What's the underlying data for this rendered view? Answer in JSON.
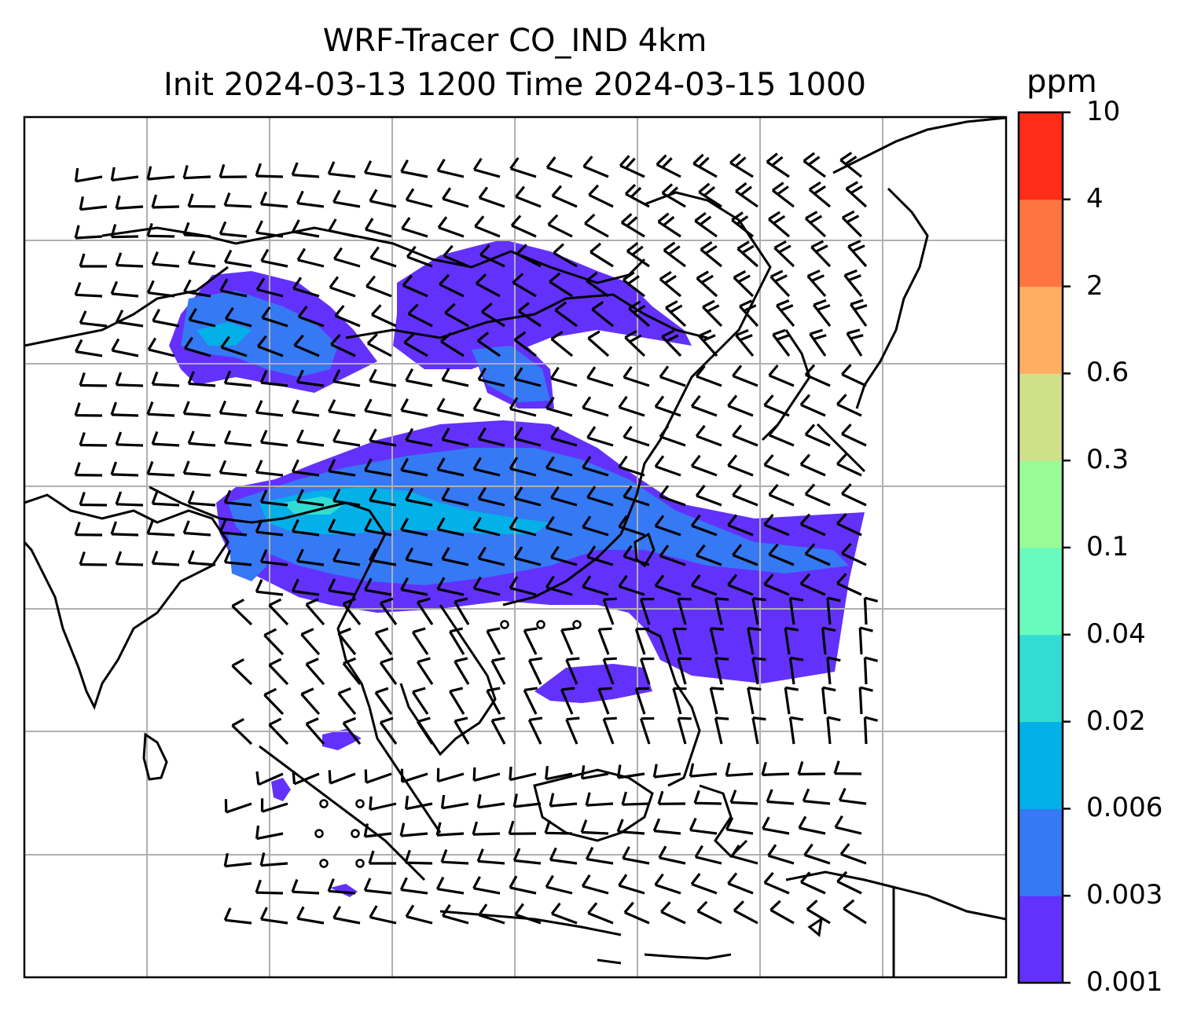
{
  "title": {
    "line1": "WRF-Tracer CO_IND 4km",
    "line2": "Init 2024-03-13 1200 Time 2024-03-15 1000"
  },
  "colorbar": {
    "unit": "ppm",
    "levels": [
      "0.001",
      "0.003",
      "0.006",
      "0.02",
      "0.04",
      "0.1",
      "0.3",
      "0.6",
      "2",
      "4",
      "10"
    ],
    "colors": [
      "#6331fc",
      "#3579f4",
      "#04b0e8",
      "#33dcd3",
      "#69fbbd",
      "#9afb96",
      "#cfe08a",
      "#ffae62",
      "#ff7541",
      "#ff2c18"
    ]
  },
  "map": {
    "gridlines": true,
    "coastline_color": "#000000",
    "barb_color": "#000000"
  }
}
